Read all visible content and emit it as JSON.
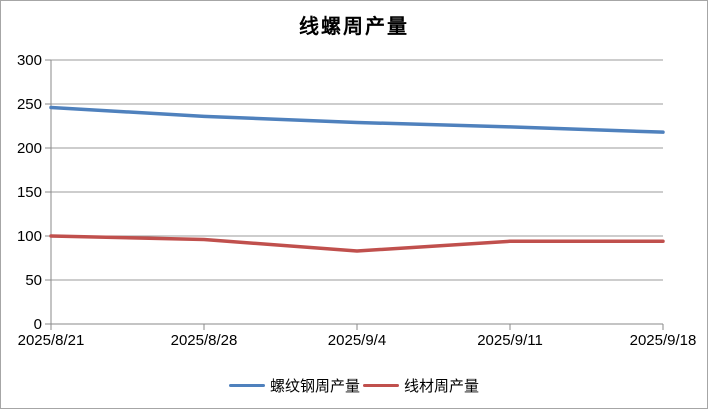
{
  "title": "线螺周产量",
  "colors": {
    "background": "#ffffff",
    "frame_border": "#a6a6a6",
    "gridline": "#9b9b9b",
    "axis": "#8a8a8a",
    "text": "#000000",
    "series_rebar": "#4F81BD",
    "series_wire": "#C0504D"
  },
  "chart_data": {
    "type": "line",
    "title": "线螺周产量",
    "categories": [
      "2025/8/21",
      "2025/8/28",
      "2025/9/4",
      "2025/9/11",
      "2025/9/18"
    ],
    "series": [
      {
        "name": "螺纹钢周产量",
        "color": "#4F81BD",
        "values": [
          246,
          236,
          229,
          224,
          218
        ]
      },
      {
        "name": "线材周产量",
        "color": "#C0504D",
        "values": [
          100,
          96,
          83,
          94,
          94
        ]
      }
    ],
    "xlabel": "",
    "ylabel": "",
    "ylim": [
      0,
      300
    ],
    "yticks": [
      0,
      50,
      100,
      150,
      200,
      250,
      300
    ],
    "grid": true,
    "legend_position": "bottom"
  }
}
